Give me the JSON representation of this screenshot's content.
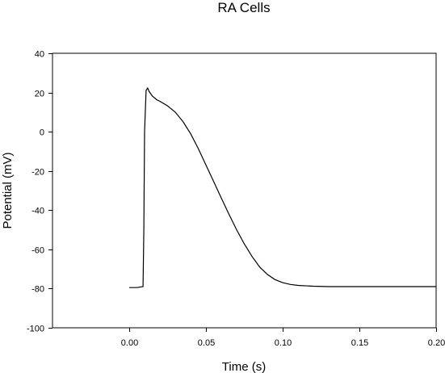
{
  "chart_data": {
    "type": "line",
    "title": "RA Cells",
    "xlabel": "Time (s)",
    "ylabel": "Potential (mV)",
    "xlim": [
      -0.05,
      0.2
    ],
    "ylim": [
      -100,
      40
    ],
    "x_ticks": [
      0.0,
      0.05,
      0.1,
      0.15,
      0.2
    ],
    "x_tick_labels": [
      "0.00",
      "0.05",
      "0.10",
      "0.15",
      "0.20"
    ],
    "y_ticks": [
      -100,
      -80,
      -60,
      -40,
      -20,
      0,
      20,
      40
    ],
    "y_tick_labels": [
      "-100",
      "-80",
      "-60",
      "-40",
      "-20",
      "0",
      "20",
      "40"
    ],
    "grid": false,
    "series": [
      {
        "color": "#000000",
        "x": [
          0.0,
          0.005,
          0.009,
          0.0095,
          0.01,
          0.011,
          0.012,
          0.013,
          0.015,
          0.018,
          0.02,
          0.025,
          0.03,
          0.035,
          0.04,
          0.045,
          0.05,
          0.055,
          0.06,
          0.065,
          0.07,
          0.075,
          0.08,
          0.085,
          0.09,
          0.095,
          0.1,
          0.105,
          0.11,
          0.12,
          0.13,
          0.14,
          0.15,
          0.16,
          0.18,
          0.2
        ],
        "y": [
          -79.5,
          -79.5,
          -79.0,
          -50.0,
          0.0,
          21.0,
          22.3,
          20.5,
          18.2,
          16.3,
          15.5,
          13.2,
          10.0,
          5.2,
          -1.0,
          -8.6,
          -17.0,
          -25.4,
          -33.8,
          -42.1,
          -50.0,
          -57.2,
          -63.6,
          -69.0,
          -72.8,
          -75.4,
          -77.0,
          -77.9,
          -78.4,
          -78.8,
          -79.0,
          -79.0,
          -79.0,
          -79.0,
          -79.0,
          -79.0
        ]
      }
    ]
  }
}
